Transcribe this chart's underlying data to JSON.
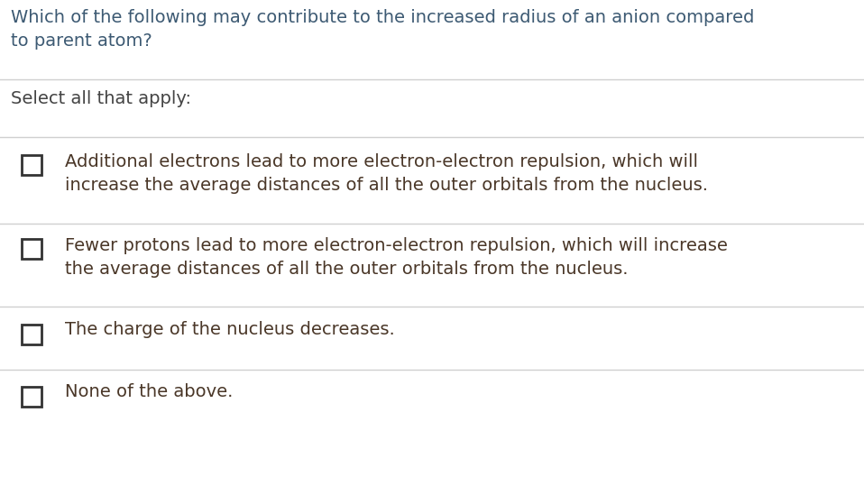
{
  "background_color": "#ffffff",
  "title_line1": "Which of the following may contribute to the increased radius of an anion compared",
  "title_line2": "to parent atom?",
  "title_color": "#3d5a73",
  "title_fontsize": 14,
  "subtitle": "Select all that apply:",
  "subtitle_color": "#444444",
  "subtitle_fontsize": 14,
  "options": [
    "Additional electrons lead to more electron-electron repulsion, which will\nincrease the average distances of all the outer orbitals from the nucleus.",
    "Fewer protons lead to more electron-electron repulsion, which will increase\nthe average distances of all the outer orbitals from the nucleus.",
    "The charge of the nucleus decreases.",
    "None of the above."
  ],
  "option_color": "#4a3728",
  "option_fontsize": 14,
  "line_color": "#d0d0d0",
  "checkbox_edgecolor": "#333333",
  "fig_width": 9.58,
  "fig_height": 5.49,
  "dpi": 100
}
